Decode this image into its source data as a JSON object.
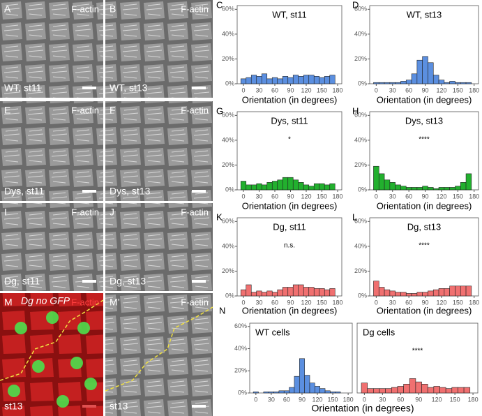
{
  "images": [
    {
      "letter": "A",
      "stain": "F-actin",
      "label": "WT, st11"
    },
    {
      "letter": "B",
      "stain": "F-actin",
      "label": "WT, st13"
    },
    {
      "letter": "E",
      "stain": "F-actin",
      "label": "Dys, st11"
    },
    {
      "letter": "F",
      "stain": "F-actin",
      "label": "Dys, st13"
    },
    {
      "letter": "I",
      "stain": "F-actin",
      "label": "Dg, st11"
    },
    {
      "letter": "J",
      "stain": "F-actin",
      "label": "Dg, st13"
    },
    {
      "letter": "M",
      "stain": "F-actin",
      "genotype": "Dg no GFP",
      "label": "st13"
    },
    {
      "letter": "M’",
      "stain": "F-actin",
      "label": "st13"
    }
  ],
  "panel_n": {
    "letter": "N",
    "xlabel": "Orientation (in degrees)"
  },
  "chart_data": [
    {
      "type": "histogram",
      "panel_letter": "C",
      "title": "WT, st11",
      "xlabel": "Orientation (in degrees)",
      "color": "#5b8fe0",
      "bins": [
        -5,
        5,
        15,
        25,
        35,
        45,
        55,
        65,
        75,
        85,
        95,
        105,
        115,
        125,
        135,
        145,
        155,
        165,
        175
      ],
      "values": [
        4,
        5,
        7,
        6,
        8,
        4,
        5,
        4,
        6,
        5,
        7,
        6,
        7,
        7,
        6,
        5,
        6,
        7
      ],
      "xlim": [
        -12,
        188
      ],
      "xticks": [
        0,
        30,
        60,
        90,
        120,
        150,
        180
      ],
      "ylim": [
        0,
        63
      ],
      "yticks": [
        {
          "value": 0,
          "label": "0%"
        },
        {
          "value": 20,
          "label": "20%"
        },
        {
          "value": 40,
          "label": "40%"
        },
        {
          "value": 60,
          "label": "60%"
        }
      ]
    },
    {
      "type": "histogram",
      "panel_letter": "D",
      "title": "WT, st13",
      "xlabel": "Orientation (in degrees)",
      "color": "#5b8fe0",
      "bins": [
        -5,
        5,
        15,
        25,
        35,
        45,
        55,
        65,
        75,
        85,
        95,
        105,
        115,
        125,
        135,
        145,
        155,
        165,
        175
      ],
      "values": [
        1,
        1,
        1,
        1,
        1,
        2,
        3,
        8,
        19,
        22,
        17,
        7,
        3,
        1,
        2,
        1,
        1,
        1
      ],
      "xlim": [
        -12,
        188
      ],
      "xticks": [
        0,
        30,
        60,
        90,
        120,
        150,
        180
      ],
      "ylim": [
        0,
        63
      ],
      "yticks": [
        {
          "value": 0,
          "label": "0%"
        },
        {
          "value": 20,
          "label": "20%"
        },
        {
          "value": 40,
          "label": "40%"
        },
        {
          "value": 60,
          "label": "60%"
        }
      ]
    },
    {
      "type": "histogram",
      "panel_letter": "G",
      "title": "Dys, st11",
      "annotation": "*",
      "xlabel": "Orientation (in degrees)",
      "color": "#22b02e",
      "bins": [
        -5,
        5,
        15,
        25,
        35,
        45,
        55,
        65,
        75,
        85,
        95,
        105,
        115,
        125,
        135,
        145,
        155,
        165,
        175
      ],
      "values": [
        7,
        4,
        4,
        5,
        4,
        6,
        7,
        8,
        10,
        10,
        8,
        6,
        4,
        3,
        5,
        5,
        4,
        5
      ],
      "xlim": [
        -12,
        188
      ],
      "xticks": [
        0,
        30,
        60,
        90,
        120,
        150,
        180
      ],
      "ylim": [
        0,
        63
      ],
      "yticks": [
        {
          "value": 0,
          "label": "0%"
        },
        {
          "value": 20,
          "label": "20%"
        },
        {
          "value": 40,
          "label": "40%"
        },
        {
          "value": 60,
          "label": "60%"
        }
      ]
    },
    {
      "type": "histogram",
      "panel_letter": "H",
      "title": "Dys, st13",
      "annotation": "****",
      "xlabel": "Orientation (in degrees)",
      "color": "#22b02e",
      "bins": [
        -5,
        5,
        15,
        25,
        35,
        45,
        55,
        65,
        75,
        85,
        95,
        105,
        115,
        125,
        135,
        145,
        155,
        165,
        175
      ],
      "values": [
        19,
        13,
        8,
        6,
        4,
        3,
        2,
        2,
        2,
        3,
        2,
        1,
        2,
        2,
        2,
        3,
        6,
        13
      ],
      "xlim": [
        -12,
        188
      ],
      "xticks": [
        0,
        30,
        60,
        90,
        120,
        150,
        180
      ],
      "ylim": [
        0,
        63
      ],
      "yticks": [
        {
          "value": 0,
          "label": "0%"
        },
        {
          "value": 20,
          "label": "20%"
        },
        {
          "value": 40,
          "label": "40%"
        },
        {
          "value": 60,
          "label": "60%"
        }
      ]
    },
    {
      "type": "histogram",
      "panel_letter": "K",
      "title": "Dg, st11",
      "annotation": "n.s.",
      "xlabel": "Orientation (in degrees)",
      "color": "#f07070",
      "bins": [
        -5,
        5,
        15,
        25,
        35,
        45,
        55,
        65,
        75,
        85,
        95,
        105,
        115,
        125,
        135,
        145,
        155,
        165,
        175
      ],
      "values": [
        5,
        9,
        3,
        4,
        3,
        4,
        3,
        5,
        7,
        7,
        9,
        9,
        7,
        7,
        6,
        6,
        5,
        6
      ],
      "xlim": [
        -12,
        188
      ],
      "xticks": [
        0,
        30,
        60,
        90,
        120,
        150,
        180
      ],
      "ylim": [
        0,
        63
      ],
      "yticks": [
        {
          "value": 0,
          "label": "0%"
        },
        {
          "value": 20,
          "label": "20%"
        },
        {
          "value": 40,
          "label": "40%"
        },
        {
          "value": 60,
          "label": "60%"
        }
      ]
    },
    {
      "type": "histogram",
      "panel_letter": "L",
      "title": "Dg, st13",
      "annotation": "****",
      "xlabel": "Orientation (in degrees)",
      "color": "#f07070",
      "bins": [
        -5,
        5,
        15,
        25,
        35,
        45,
        55,
        65,
        75,
        85,
        95,
        105,
        115,
        125,
        135,
        145,
        155,
        165,
        175
      ],
      "values": [
        12,
        7,
        5,
        4,
        3,
        3,
        2,
        2,
        3,
        3,
        4,
        5,
        6,
        6,
        8,
        8,
        8,
        8
      ],
      "xlim": [
        -12,
        188
      ],
      "xticks": [
        0,
        30,
        60,
        90,
        120,
        150,
        180
      ],
      "ylim": [
        0,
        63
      ],
      "yticks": [
        {
          "value": 0,
          "label": "0%"
        },
        {
          "value": 20,
          "label": "20%"
        },
        {
          "value": 40,
          "label": "40%"
        },
        {
          "value": 60,
          "label": "60%"
        }
      ]
    },
    {
      "type": "histogram",
      "title": "WT cells",
      "color": "#5b8fe0",
      "bins": [
        -5,
        5,
        15,
        25,
        35,
        45,
        55,
        65,
        75,
        85,
        95,
        105,
        115,
        125,
        135,
        145,
        155,
        165,
        175
      ],
      "values": [
        1,
        0,
        1,
        1,
        1,
        2,
        2,
        5,
        15,
        31,
        16,
        9,
        6,
        4,
        2,
        1,
        1,
        0
      ],
      "xlim": [
        -12,
        188
      ],
      "xticks": [
        0,
        30,
        60,
        90,
        120,
        150,
        180
      ],
      "ylim": [
        0,
        63
      ],
      "yticks": [
        {
          "value": 0,
          "label": "0%"
        },
        {
          "value": 20,
          "label": "20%"
        },
        {
          "value": 40,
          "label": "40%"
        },
        {
          "value": 60,
          "label": "60%"
        }
      ]
    },
    {
      "type": "histogram",
      "title": "Dg cells",
      "annotation": "****",
      "color": "#f07070",
      "bins": [
        -5,
        5,
        15,
        25,
        35,
        45,
        55,
        65,
        75,
        85,
        95,
        105,
        115,
        125,
        135,
        145,
        155,
        165,
        175
      ],
      "values": [
        9,
        4,
        4,
        4,
        4,
        5,
        6,
        8,
        13,
        10,
        8,
        5,
        6,
        5,
        4,
        5,
        5,
        5
      ],
      "xlim": [
        -12,
        188
      ],
      "xticks": [
        0,
        30,
        60,
        90,
        120,
        150,
        180
      ],
      "ylim": [
        0,
        63
      ],
      "yticks": []
    }
  ]
}
